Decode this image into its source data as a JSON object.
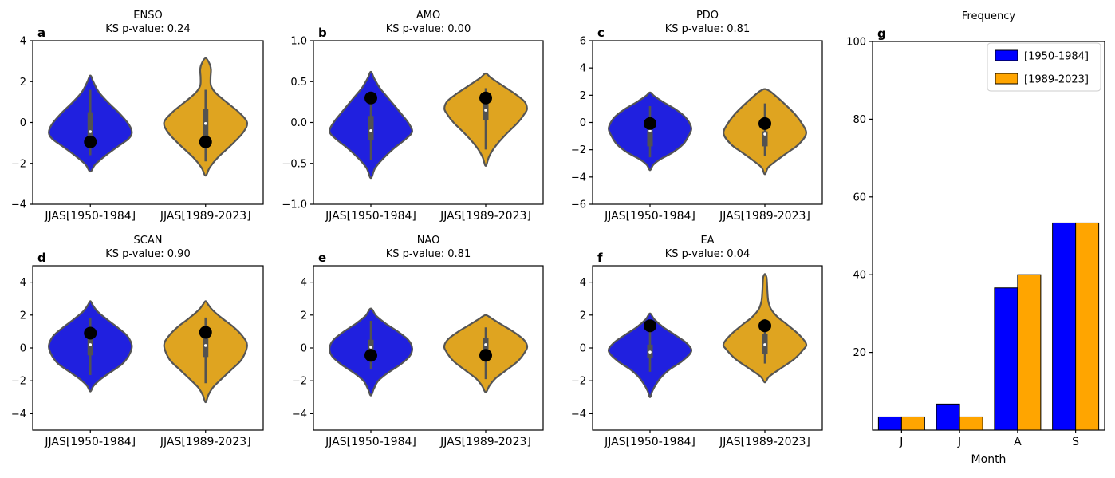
{
  "figure": {
    "background": "#ffffff",
    "colors": {
      "violin_blue": "#2020df",
      "violin_orange": "#dfa420",
      "bar_blue": "#0000ff",
      "bar_orange": "#ffa500",
      "violin_edge": "#555555",
      "inner_box": "#525252",
      "mean_dot": "#000000",
      "median_dot": "#ffffff",
      "axis": "#000000",
      "legend_border": "#cccccc"
    }
  },
  "chart_data": [
    {
      "type": "violin",
      "panel_label": "a",
      "title": "ENSO",
      "subtitle": "KS p-value: 0.24",
      "ylim": [
        -4,
        4
      ],
      "ytick_values": [
        -4,
        -2,
        0,
        2,
        4
      ],
      "ytick_labels": [
        "−4",
        "−2",
        "0",
        "2",
        "4"
      ],
      "categories": [
        "JJAS[1950-1984]",
        "JJAS[1989-2023]"
      ],
      "violins": [
        {
          "series": "[1950-1984]",
          "color_key": "violin_blue",
          "profile": [
            [
              -2.4,
              0
            ],
            [
              -2.05,
              0.12
            ],
            [
              -1.6,
              0.38
            ],
            [
              -1.15,
              0.68
            ],
            [
              -0.8,
              0.92
            ],
            [
              -0.5,
              1.0
            ],
            [
              -0.1,
              0.93
            ],
            [
              0.45,
              0.7
            ],
            [
              1.0,
              0.42
            ],
            [
              1.5,
              0.2
            ],
            [
              2.0,
              0.07
            ],
            [
              2.3,
              0
            ]
          ],
          "box": [
            -1.25,
            0.5
          ],
          "whisker": [
            -1.6,
            1.6
          ],
          "median": -0.45,
          "mean": -0.95
        },
        {
          "series": "[1989-2023]",
          "color_key": "violin_orange",
          "profile": [
            [
              -2.6,
              0
            ],
            [
              -2.2,
              0.1
            ],
            [
              -1.7,
              0.3
            ],
            [
              -1.1,
              0.62
            ],
            [
              -0.5,
              0.9
            ],
            [
              0.0,
              1.0
            ],
            [
              0.5,
              0.8
            ],
            [
              1.0,
              0.5
            ],
            [
              1.45,
              0.24
            ],
            [
              1.8,
              0.13
            ],
            [
              2.2,
              0.12
            ],
            [
              2.6,
              0.13
            ],
            [
              2.9,
              0.09
            ],
            [
              3.15,
              0
            ]
          ],
          "box": [
            -0.85,
            0.65
          ],
          "whisker": [
            -1.9,
            1.6
          ],
          "median": -0.05,
          "mean": -0.95
        }
      ]
    },
    {
      "type": "violin",
      "panel_label": "b",
      "title": "AMO",
      "subtitle": "KS p-value: 0.00",
      "ylim": [
        -1,
        1
      ],
      "ytick_values": [
        -1.0,
        -0.5,
        0.0,
        0.5,
        1.0
      ],
      "ytick_labels": [
        "−1.0",
        "−0.5",
        "0.0",
        "0.5",
        "1.0"
      ],
      "categories": [
        "JJAS[1950-1984]",
        "JJAS[1989-2023]"
      ],
      "violins": [
        {
          "series": "[1950-1984]",
          "color_key": "violin_blue",
          "profile": [
            [
              -0.68,
              0
            ],
            [
              -0.56,
              0.1
            ],
            [
              -0.45,
              0.28
            ],
            [
              -0.32,
              0.55
            ],
            [
              -0.2,
              0.85
            ],
            [
              -0.11,
              1.0
            ],
            [
              0.0,
              0.9
            ],
            [
              0.14,
              0.68
            ],
            [
              0.28,
              0.45
            ],
            [
              0.42,
              0.22
            ],
            [
              0.54,
              0.08
            ],
            [
              0.62,
              0
            ]
          ],
          "box": [
            -0.22,
            0.08
          ],
          "whisker": [
            -0.46,
            0.35
          ],
          "median": -0.1,
          "mean": 0.3
        },
        {
          "series": "[1989-2023]",
          "color_key": "violin_orange",
          "profile": [
            [
              -0.53,
              0
            ],
            [
              -0.42,
              0.08
            ],
            [
              -0.3,
              0.22
            ],
            [
              -0.15,
              0.48
            ],
            [
              0.0,
              0.78
            ],
            [
              0.1,
              0.93
            ],
            [
              0.17,
              1.0
            ],
            [
              0.26,
              0.93
            ],
            [
              0.36,
              0.68
            ],
            [
              0.46,
              0.38
            ],
            [
              0.55,
              0.12
            ],
            [
              0.6,
              0
            ]
          ],
          "box": [
            0.03,
            0.27
          ],
          "whisker": [
            -0.33,
            0.42
          ],
          "median": 0.15,
          "mean": 0.3
        }
      ]
    },
    {
      "type": "violin",
      "panel_label": "c",
      "title": "PDO",
      "subtitle": "KS p-value: 0.81",
      "ylim": [
        -6,
        6
      ],
      "ytick_values": [
        -6,
        -4,
        -2,
        0,
        2,
        4,
        6
      ],
      "ytick_labels": [
        "−6",
        "−4",
        "−2",
        "0",
        "2",
        "4",
        "6"
      ],
      "categories": [
        "JJAS[1950-1984]",
        "JJAS[1989-2023]"
      ],
      "violins": [
        {
          "series": "[1950-1984]",
          "color_key": "violin_blue",
          "profile": [
            [
              -3.5,
              0
            ],
            [
              -3.1,
              0.08
            ],
            [
              -2.7,
              0.25
            ],
            [
              -2.2,
              0.55
            ],
            [
              -1.6,
              0.8
            ],
            [
              -1.0,
              0.93
            ],
            [
              -0.5,
              1.0
            ],
            [
              0.0,
              0.95
            ],
            [
              0.5,
              0.82
            ],
            [
              1.0,
              0.6
            ],
            [
              1.5,
              0.32
            ],
            [
              1.95,
              0.1
            ],
            [
              2.2,
              0
            ]
          ],
          "box": [
            -1.75,
            -0.55
          ],
          "whisker": [
            -2.55,
            1.2
          ],
          "median": -0.6,
          "mean": -0.08
        },
        {
          "series": "[1989-2023]",
          "color_key": "violin_orange",
          "profile": [
            [
              -3.8,
              0
            ],
            [
              -3.3,
              0.08
            ],
            [
              -2.8,
              0.28
            ],
            [
              -2.2,
              0.55
            ],
            [
              -1.6,
              0.82
            ],
            [
              -0.8,
              1.0
            ],
            [
              0.0,
              0.88
            ],
            [
              0.7,
              0.7
            ],
            [
              1.3,
              0.5
            ],
            [
              1.9,
              0.28
            ],
            [
              2.3,
              0.12
            ],
            [
              2.45,
              0
            ]
          ],
          "box": [
            -1.75,
            -0.65
          ],
          "whisker": [
            -2.45,
            1.4
          ],
          "median": -0.85,
          "mean": -0.08
        }
      ]
    },
    {
      "type": "violin",
      "panel_label": "d",
      "title": "SCAN",
      "subtitle": "KS p-value: 0.90",
      "ylim": [
        -5,
        5
      ],
      "ytick_values": [
        -4,
        -2,
        0,
        2,
        4
      ],
      "ytick_labels": [
        "−4",
        "−2",
        "0",
        "2",
        "4"
      ],
      "categories": [
        "JJAS[1950-1984]",
        "JJAS[1989-2023]"
      ],
      "violins": [
        {
          "series": "[1950-1984]",
          "color_key": "violin_blue",
          "profile": [
            [
              -2.65,
              0
            ],
            [
              -2.3,
              0.08
            ],
            [
              -1.9,
              0.25
            ],
            [
              -1.45,
              0.5
            ],
            [
              -0.95,
              0.78
            ],
            [
              -0.35,
              0.95
            ],
            [
              0.15,
              1.0
            ],
            [
              0.7,
              0.9
            ],
            [
              1.2,
              0.68
            ],
            [
              1.7,
              0.42
            ],
            [
              2.2,
              0.18
            ],
            [
              2.6,
              0.06
            ],
            [
              2.85,
              0
            ]
          ],
          "box": [
            -0.45,
            0.62
          ],
          "whisker": [
            -1.65,
            1.8
          ],
          "median": 0.2,
          "mean": 0.9
        },
        {
          "series": "[1989-2023]",
          "color_key": "violin_orange",
          "profile": [
            [
              -3.3,
              0
            ],
            [
              -2.85,
              0.07
            ],
            [
              -2.4,
              0.18
            ],
            [
              -1.9,
              0.38
            ],
            [
              -1.3,
              0.63
            ],
            [
              -0.7,
              0.87
            ],
            [
              0.15,
              1.0
            ],
            [
              0.75,
              0.88
            ],
            [
              1.3,
              0.66
            ],
            [
              1.8,
              0.4
            ],
            [
              2.3,
              0.17
            ],
            [
              2.65,
              0.06
            ],
            [
              2.85,
              0
            ]
          ],
          "box": [
            -0.55,
            0.7
          ],
          "whisker": [
            -2.15,
            1.85
          ],
          "median": 0.15,
          "mean": 0.95
        }
      ]
    },
    {
      "type": "violin",
      "panel_label": "e",
      "title": "NAO",
      "subtitle": "KS p-value: 0.81",
      "ylim": [
        -5,
        5
      ],
      "ytick_values": [
        -4,
        -2,
        0,
        2,
        4
      ],
      "ytick_labels": [
        "−4",
        "−2",
        "0",
        "2",
        "4"
      ],
      "categories": [
        "JJAS[1950-1984]",
        "JJAS[1989-2023]"
      ],
      "violins": [
        {
          "series": "[1950-1984]",
          "color_key": "violin_blue",
          "profile": [
            [
              -2.9,
              0
            ],
            [
              -2.5,
              0.07
            ],
            [
              -2.0,
              0.18
            ],
            [
              -1.5,
              0.42
            ],
            [
              -1.0,
              0.72
            ],
            [
              -0.5,
              0.94
            ],
            [
              0.0,
              1.0
            ],
            [
              0.5,
              0.9
            ],
            [
              1.0,
              0.65
            ],
            [
              1.5,
              0.35
            ],
            [
              1.95,
              0.13
            ],
            [
              2.4,
              0
            ]
          ],
          "box": [
            -0.2,
            0.5
          ],
          "whisker": [
            -1.3,
            1.65
          ],
          "median": 0.05,
          "mean": -0.45
        },
        {
          "series": "[1989-2023]",
          "color_key": "violin_orange",
          "profile": [
            [
              -2.7,
              0
            ],
            [
              -2.3,
              0.09
            ],
            [
              -1.85,
              0.24
            ],
            [
              -1.35,
              0.5
            ],
            [
              -0.8,
              0.78
            ],
            [
              -0.2,
              0.96
            ],
            [
              0.15,
              1.0
            ],
            [
              0.55,
              0.9
            ],
            [
              1.0,
              0.66
            ],
            [
              1.45,
              0.36
            ],
            [
              1.8,
              0.14
            ],
            [
              2.0,
              0
            ]
          ],
          "box": [
            -0.1,
            0.6
          ],
          "whisker": [
            -1.9,
            1.25
          ],
          "median": 0.2,
          "mean": -0.45
        }
      ]
    },
    {
      "type": "violin",
      "panel_label": "f",
      "title": "EA",
      "subtitle": "KS p-value: 0.04",
      "ylim": [
        -5,
        5
      ],
      "ytick_values": [
        -4,
        -2,
        0,
        2,
        4
      ],
      "ytick_labels": [
        "−4",
        "−2",
        "0",
        "2",
        "4"
      ],
      "categories": [
        "JJAS[1950-1984]",
        "JJAS[1989-2023]"
      ],
      "violins": [
        {
          "series": "[1950-1984]",
          "color_key": "violin_blue",
          "profile": [
            [
              -3.0,
              0
            ],
            [
              -2.6,
              0.06
            ],
            [
              -2.2,
              0.15
            ],
            [
              -1.75,
              0.28
            ],
            [
              -1.3,
              0.48
            ],
            [
              -0.8,
              0.78
            ],
            [
              -0.2,
              1.0
            ],
            [
              0.3,
              0.88
            ],
            [
              0.8,
              0.6
            ],
            [
              1.3,
              0.3
            ],
            [
              1.75,
              0.1
            ],
            [
              2.1,
              0
            ]
          ],
          "box": [
            -0.6,
            0.2
          ],
          "whisker": [
            -1.45,
            1.1
          ],
          "median": -0.25,
          "mean": 1.35
        },
        {
          "series": "[1989-2023]",
          "color_key": "violin_orange",
          "profile": [
            [
              -2.1,
              0
            ],
            [
              -1.75,
              0.1
            ],
            [
              -1.3,
              0.35
            ],
            [
              -0.7,
              0.7
            ],
            [
              -0.1,
              0.93
            ],
            [
              0.25,
              1.0
            ],
            [
              0.8,
              0.83
            ],
            [
              1.4,
              0.55
            ],
            [
              1.9,
              0.3
            ],
            [
              2.4,
              0.14
            ],
            [
              2.9,
              0.08
            ],
            [
              3.5,
              0.06
            ],
            [
              4.0,
              0.05
            ],
            [
              4.3,
              0.04
            ],
            [
              4.5,
              0
            ]
          ],
          "box": [
            -0.35,
            0.85
          ],
          "whisker": [
            -0.95,
            1.75
          ],
          "median": 0.2,
          "mean": 1.35
        }
      ]
    },
    {
      "type": "bar",
      "panel_label": "g",
      "title": "Frequency",
      "xlabel": "Month",
      "ylim": [
        0,
        100
      ],
      "ytick_values": [
        20,
        40,
        60,
        80,
        100
      ],
      "ytick_labels": [
        "20",
        "40",
        "60",
        "80",
        "100"
      ],
      "categories": [
        "J",
        "J",
        "A",
        "S"
      ],
      "series": [
        {
          "name": "[1950-1984]",
          "color_key": "bar_blue",
          "values": [
            3.4,
            6.7,
            36.6,
            53.3
          ]
        },
        {
          "name": "[1989-2023]",
          "color_key": "bar_orange",
          "values": [
            3.4,
            3.4,
            40.0,
            53.3
          ]
        }
      ],
      "legend": {
        "entries": [
          {
            "label": "[1950-1984]",
            "color_key": "bar_blue"
          },
          {
            "label": "[1989-2023]",
            "color_key": "bar_orange"
          }
        ],
        "position": "upper right"
      }
    }
  ]
}
